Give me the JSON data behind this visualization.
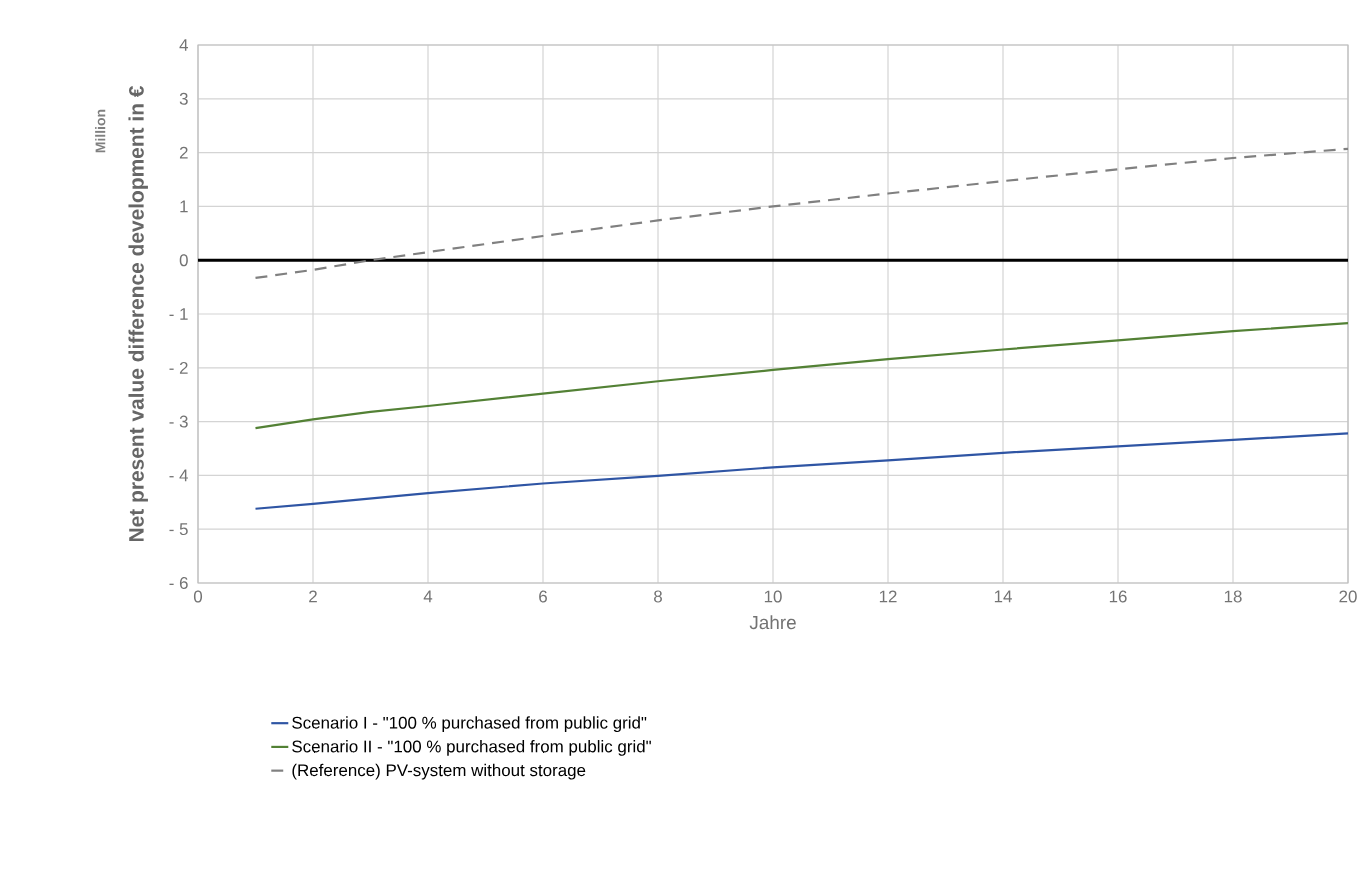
{
  "chart_data": {
    "type": "line",
    "xlabel": "Jahre",
    "ylabel": "Net present value difference development in €",
    "annotations": [
      "Million"
    ],
    "xlim": [
      0,
      20
    ],
    "xticks": [
      0,
      2,
      4,
      6,
      8,
      10,
      12,
      14,
      16,
      18,
      20
    ],
    "ylim": [
      -6,
      4
    ],
    "yticks": [
      {
        "value": -6,
        "label": "- 6"
      },
      {
        "value": -5,
        "label": "- 5"
      },
      {
        "value": -4,
        "label": "- 4"
      },
      {
        "value": -3,
        "label": "- 3"
      },
      {
        "value": -2,
        "label": "- 2"
      },
      {
        "value": -1,
        "label": "- 1"
      },
      0,
      1,
      2,
      3,
      4
    ],
    "grid": true,
    "legend": "bottom",
    "marker": "none",
    "ref_lines": [
      {
        "axis": "y",
        "value": 0,
        "color": "#000000"
      }
    ],
    "series": [
      {
        "name": "Scenario I - \"100 % purchased from public grid\"",
        "color": "#2f55a4",
        "line_style": "solid",
        "x": [
          1,
          2,
          4,
          6,
          8,
          10,
          12,
          14,
          16,
          18,
          20
        ],
        "values": [
          -4.62,
          -4.53,
          -4.33,
          -4.15,
          -4.01,
          -3.85,
          -3.72,
          -3.58,
          -3.46,
          -3.34,
          -3.22
        ]
      },
      {
        "name": "Scenario II - \"100 % purchased from public grid\"",
        "color": "#538135",
        "line_style": "solid",
        "x": [
          1,
          2,
          3,
          4,
          6,
          8,
          10,
          12,
          14,
          16,
          18,
          20
        ],
        "values": [
          -3.12,
          -2.96,
          -2.82,
          -2.71,
          -2.48,
          -2.25,
          -2.04,
          -1.84,
          -1.66,
          -1.49,
          -1.32,
          -1.17
        ]
      },
      {
        "name": "(Reference) PV-system without storage",
        "color": "#808080",
        "line_style": "dashed",
        "x": [
          1,
          2,
          3,
          4,
          6,
          8,
          10,
          12,
          14,
          16,
          18,
          20
        ],
        "values": [
          -0.33,
          -0.18,
          0.0,
          0.15,
          0.45,
          0.74,
          1.0,
          1.24,
          1.47,
          1.69,
          1.9,
          2.07
        ]
      }
    ]
  }
}
